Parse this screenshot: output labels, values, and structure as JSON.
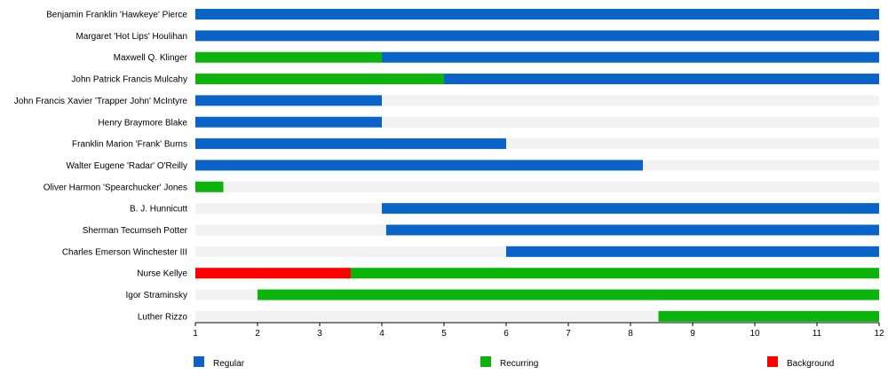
{
  "chart_data": {
    "type": "bar",
    "orientation": "horizontal-timeline",
    "xlim": [
      1,
      12
    ],
    "xticks": [
      "1",
      "2",
      "3",
      "4",
      "5",
      "6",
      "7",
      "8",
      "9",
      "10",
      "11",
      "12"
    ],
    "grid": false,
    "legend_placement": "bottom",
    "colors": {
      "Regular": "#0a64c8",
      "Recurring": "#0ab40a",
      "Background": "#ff0000",
      "track": "#f2f2f2"
    },
    "legend": [
      {
        "name": "Regular"
      },
      {
        "name": "Recurring"
      },
      {
        "name": "Background"
      }
    ],
    "rows": [
      {
        "label": "Benjamin Franklin 'Hawkeye' Pierce",
        "segments": [
          {
            "start": 1,
            "end": 12,
            "type": "Regular"
          }
        ]
      },
      {
        "label": "Margaret 'Hot Lips' Houlihan",
        "segments": [
          {
            "start": 1,
            "end": 12,
            "type": "Regular"
          }
        ]
      },
      {
        "label": "Maxwell Q. Klinger",
        "segments": [
          {
            "start": 1,
            "end": 4,
            "type": "Recurring"
          },
          {
            "start": 4,
            "end": 12,
            "type": "Regular"
          }
        ]
      },
      {
        "label": "John Patrick Francis Mulcahy",
        "segments": [
          {
            "start": 1,
            "end": 5,
            "type": "Recurring"
          },
          {
            "start": 5,
            "end": 12,
            "type": "Regular"
          }
        ]
      },
      {
        "label": "John Francis Xavier 'Trapper John' McIntyre",
        "segments": [
          {
            "start": 1,
            "end": 4,
            "type": "Regular"
          }
        ]
      },
      {
        "label": "Henry Braymore Blake",
        "segments": [
          {
            "start": 1,
            "end": 4,
            "type": "Regular"
          }
        ]
      },
      {
        "label": "Franklin Marion 'Frank' Burns",
        "segments": [
          {
            "start": 1,
            "end": 6,
            "type": "Regular"
          }
        ]
      },
      {
        "label": "Walter Eugene 'Radar' O'Reilly",
        "segments": [
          {
            "start": 1,
            "end": 8.2,
            "type": "Regular"
          }
        ]
      },
      {
        "label": "Oliver Harmon 'Spearchucker' Jones",
        "segments": [
          {
            "start": 1,
            "end": 1.45,
            "type": "Recurring"
          }
        ]
      },
      {
        "label": "B. J. Hunnicutt",
        "segments": [
          {
            "start": 4,
            "end": 12,
            "type": "Regular"
          }
        ]
      },
      {
        "label": "Sherman Tecumseh Potter",
        "segments": [
          {
            "start": 4.07,
            "end": 12,
            "type": "Regular"
          }
        ]
      },
      {
        "label": "Charles Emerson Winchester III",
        "segments": [
          {
            "start": 6,
            "end": 12,
            "type": "Regular"
          }
        ]
      },
      {
        "label": "Nurse Kellye",
        "segments": [
          {
            "start": 1,
            "end": 3.5,
            "type": "Background"
          },
          {
            "start": 3.5,
            "end": 12,
            "type": "Recurring"
          }
        ]
      },
      {
        "label": "Igor Straminsky",
        "segments": [
          {
            "start": 2,
            "end": 12,
            "type": "Recurring"
          }
        ]
      },
      {
        "label": "Luther Rizzo",
        "segments": [
          {
            "start": 8.45,
            "end": 12,
            "type": "Recurring"
          }
        ]
      }
    ]
  }
}
